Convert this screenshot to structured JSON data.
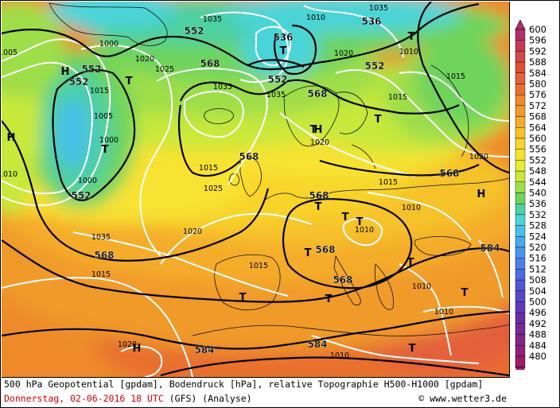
{
  "footer": {
    "line1": "500 hPa Geopotential [gpdam], Bodendruck [hPa], relative Topographie H500-H1000 [gpdam]",
    "date": "Donnerstag, 02-06-2016  18 UTC",
    "model": "(GFS)  (Analyse)",
    "copyright": "© www.wetter3.de"
  },
  "legend": {
    "values": [
      "600",
      "596",
      "592",
      "588",
      "584",
      "580",
      "576",
      "572",
      "568",
      "564",
      "560",
      "556",
      "552",
      "548",
      "544",
      "540",
      "536",
      "532",
      "528",
      "524",
      "520",
      "516",
      "512",
      "508",
      "504",
      "500",
      "496",
      "492",
      "488",
      "484",
      "480"
    ],
    "colors": [
      "#b0306a",
      "#c23c55",
      "#d04848",
      "#dc5030",
      "#e4603a",
      "#e8702e",
      "#ee8a2a",
      "#f09a2c",
      "#f4ac2a",
      "#f6c22a",
      "#f8d42c",
      "#f8e230",
      "#e8ec30",
      "#c8e83a",
      "#9ede48",
      "#6ed45c",
      "#4ed0a2",
      "#4ad4d8",
      "#48c0e8",
      "#48a8ec",
      "#4894ec",
      "#4a80e8",
      "#4c6ce0",
      "#5058d8",
      "#5848c8",
      "#6038b8",
      "#6c2ca8",
      "#782898",
      "#842488",
      "#902078",
      "#9c1c68"
    ]
  },
  "map": {
    "isobar_labels": [
      "1035",
      "1010",
      "1035",
      "1005",
      "1020",
      "1025",
      "1020",
      "1000",
      "1015",
      "1005",
      "1000",
      "1035",
      "1035",
      "1020",
      "1010",
      "1015",
      "1025",
      "1020",
      "1015",
      "1000",
      "1035",
      "1015",
      "1020",
      "1015",
      "1015",
      "1010",
      "1010",
      "1010",
      "1010",
      "1020",
      "1010",
      "1015",
      "1010"
    ],
    "height_labels": [
      "552",
      "552",
      "552",
      "568",
      "536",
      "536",
      "552",
      "552",
      "568",
      "552",
      "568",
      "568",
      "568",
      "584",
      "584",
      "584",
      "568",
      "568",
      "568"
    ],
    "low_markers": [
      "T",
      "T",
      "T",
      "T",
      "T",
      "T",
      "T",
      "T",
      "T",
      "T",
      "T",
      "T",
      "T",
      "T",
      "T"
    ],
    "high_markers": [
      "H",
      "H",
      "H",
      "H",
      "H"
    ],
    "colors": {
      "contour": "#000000",
      "isobar": "#ffffff",
      "coast": "#111111"
    }
  }
}
